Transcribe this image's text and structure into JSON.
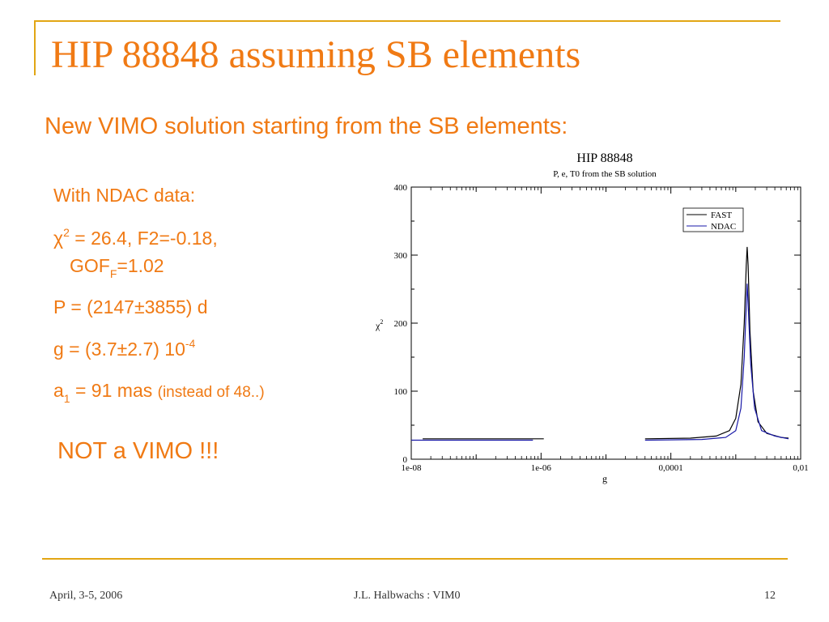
{
  "slide": {
    "title": "HIP 88848 assuming SB elements",
    "subtitle": "New VIMO solution starting from the SB elements:",
    "bullets": {
      "b1": "With NDAC data:",
      "b2_chi": "χ",
      "b2_sup": "2",
      "b2_rest": " = 26.4, F2=-0.18,",
      "b2b_a": "GOF",
      "b2b_sub": "F",
      "b2b_b": "=1.02",
      "b3": "P = (2147±3855) d",
      "b4": "g = (3.7±2.7) 10",
      "b4_sup": "-4",
      "b5_a": "a",
      "b5_sub": "1",
      "b5_b": " = 91 mas ",
      "b5_small": "(instead of 48..)"
    },
    "conclusion": "NOT a VIMO !!!",
    "footer": {
      "date": "April, 3-5, 2006",
      "author": "J.L. Halbwachs : VIM0",
      "page": "12"
    },
    "colors": {
      "accent": "#f07a14",
      "line": "#e2a614",
      "fast": "#000000",
      "ndac": "#1a1aa8"
    }
  },
  "chart_data": {
    "type": "line",
    "title": "HIP 88848",
    "subtitle": "P, e, T0 from the SB solution",
    "xlabel": "g",
    "ylabel": "χ2",
    "x_scale": "log",
    "xlim": [
      1e-08,
      0.01
    ],
    "ylim": [
      0,
      400
    ],
    "x_ticks": [
      "1e-08",
      "1e-06",
      "0,0001",
      "0,01"
    ],
    "y_ticks": [
      "0",
      "100",
      "200",
      "300",
      "400"
    ],
    "legend_position": "top-right",
    "series": [
      {
        "name": "FAST",
        "color": "#000000",
        "segments": [
          [
            [
              1.5e-08,
              30
            ],
            [
              1.1e-06,
              30
            ]
          ],
          [
            [
              4e-05,
              30
            ],
            [
              0.0002,
              31
            ],
            [
              0.0005,
              34
            ],
            [
              0.0008,
              42
            ],
            [
              0.001,
              60
            ],
            [
              0.0012,
              110
            ],
            [
              0.00135,
              200
            ],
            [
              0.00145,
              285
            ],
            [
              0.0015,
              312
            ],
            [
              0.00155,
              285
            ],
            [
              0.00165,
              190
            ],
            [
              0.00185,
              100
            ],
            [
              0.0022,
              55
            ],
            [
              0.003,
              38
            ],
            [
              0.005,
              32
            ],
            [
              0.0065,
              31
            ]
          ]
        ]
      },
      {
        "name": "NDAC",
        "color": "#1a1aa8",
        "segments": [
          [
            [
              1e-08,
              28
            ],
            [
              7.5e-07,
              28
            ]
          ],
          [
            [
              4e-05,
              28
            ],
            [
              0.0003,
              29
            ],
            [
              0.0007,
              32
            ],
            [
              0.001,
              42
            ],
            [
              0.0012,
              75
            ],
            [
              0.00135,
              150
            ],
            [
              0.00145,
              225
            ],
            [
              0.0015,
              258
            ],
            [
              0.00155,
              228
            ],
            [
              0.0017,
              140
            ],
            [
              0.00195,
              75
            ],
            [
              0.0025,
              42
            ],
            [
              0.004,
              34
            ],
            [
              0.0065,
              30
            ]
          ]
        ]
      }
    ]
  }
}
